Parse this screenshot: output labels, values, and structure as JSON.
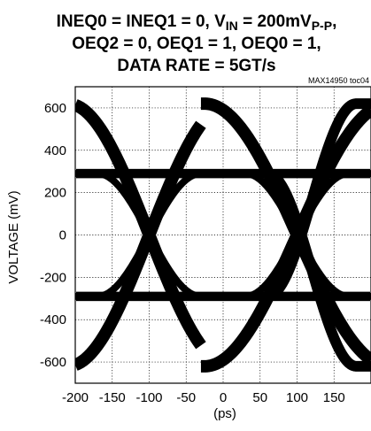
{
  "chart_data": {
    "type": "line",
    "subtype": "eye-diagram",
    "title_lines": [
      "INEQ0 = INEQ1 = 0, V_IN = 200mV_P-P,",
      "OEQ2 = 0, OEQ1 = 1, OEQ0 = 1,",
      "DATA RATE = 5GT/s"
    ],
    "title_parts": {
      "line1_prefix": "INEQ0 = INEQ1 = 0, V",
      "line1_sub1": "IN",
      "line1_mid": " = 200mV",
      "line1_sub2": "P-P",
      "line1_suffix": ","
    },
    "code": "MAX14950 toc04",
    "xlabel": "(ps)",
    "ylabel": "VOLTAGE (mV)",
    "xlim": [
      -200,
      200
    ],
    "ylim": [
      -700,
      700
    ],
    "xticks": [
      -200,
      -150,
      -100,
      -50,
      0,
      50,
      100,
      150
    ],
    "yticks": [
      600,
      400,
      200,
      0,
      -200,
      -400,
      -600
    ],
    "grid": "dotted",
    "unit_interval_ps": 200,
    "levels_mv": {
      "outer_peak": 620,
      "inner_level": 290
    },
    "crossing_points_ps": [
      -100,
      100
    ],
    "series": [
      {
        "x": [
          -200,
          -160,
          -130,
          -100,
          -70,
          -40,
          -20,
          0,
          20,
          40,
          70,
          100,
          130,
          160,
          200
        ],
        "y": [
          550,
          480,
          400,
          290,
          120,
          -120,
          -250,
          -280,
          -300,
          -300,
          -300,
          -300,
          -300,
          -300,
          -300
        ]
      }
    ]
  }
}
